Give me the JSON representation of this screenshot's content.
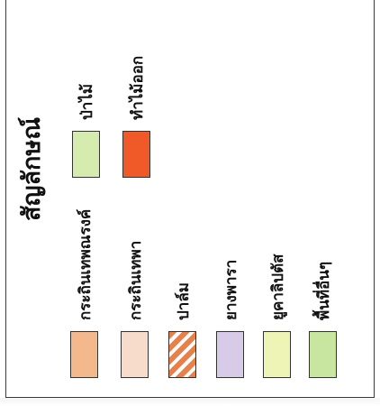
{
  "legend": {
    "title": "สัญลักษณ์",
    "items": [
      {
        "label": "ป่าไม้",
        "color": "#d6ecae",
        "pattern": "solid"
      },
      {
        "label": "ทำไม้ออก",
        "color": "#f05a28",
        "pattern": "solid"
      },
      {
        "label": "กระถินเทพณรงค์",
        "color": "#f3b98c",
        "pattern": "solid"
      },
      {
        "label": "กระถินเทพา",
        "color": "#f8dccb",
        "pattern": "solid"
      },
      {
        "label": "ปาล์ม",
        "color": "#e8804a",
        "pattern": "diagonal-hatch"
      },
      {
        "label": "ยางพารา",
        "color": "#d8cbe8",
        "pattern": "solid"
      },
      {
        "label": "ยูคาลิปตัส",
        "color": "#eef3b6",
        "pattern": "solid"
      },
      {
        "label": "พื้นที่อื่นๆ",
        "color": "#c8e6a0",
        "pattern": "solid"
      }
    ]
  }
}
